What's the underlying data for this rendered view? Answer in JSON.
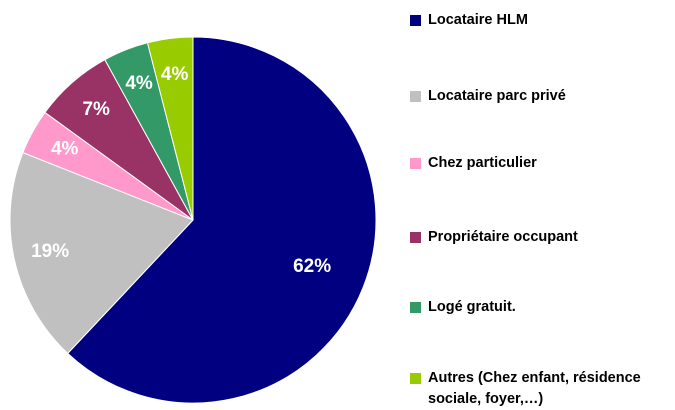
{
  "chart_data": {
    "type": "pie",
    "categories": [
      "Locataire HLM",
      "Locataire parc privé",
      "Chez particulier",
      "Propriétaire occupant",
      "Logé gratuit.",
      "Autres (Chez enfant, résidence sociale, foyer,…)"
    ],
    "values": [
      62,
      19,
      4,
      7,
      4,
      4
    ],
    "value_labels": [
      "62%",
      "19%",
      "4%",
      "7%",
      "4%",
      "4%"
    ],
    "colors": [
      "#000080",
      "#c0c0c0",
      "#ff99cc",
      "#993366",
      "#339966",
      "#99cc00"
    ],
    "legend": "right"
  }
}
